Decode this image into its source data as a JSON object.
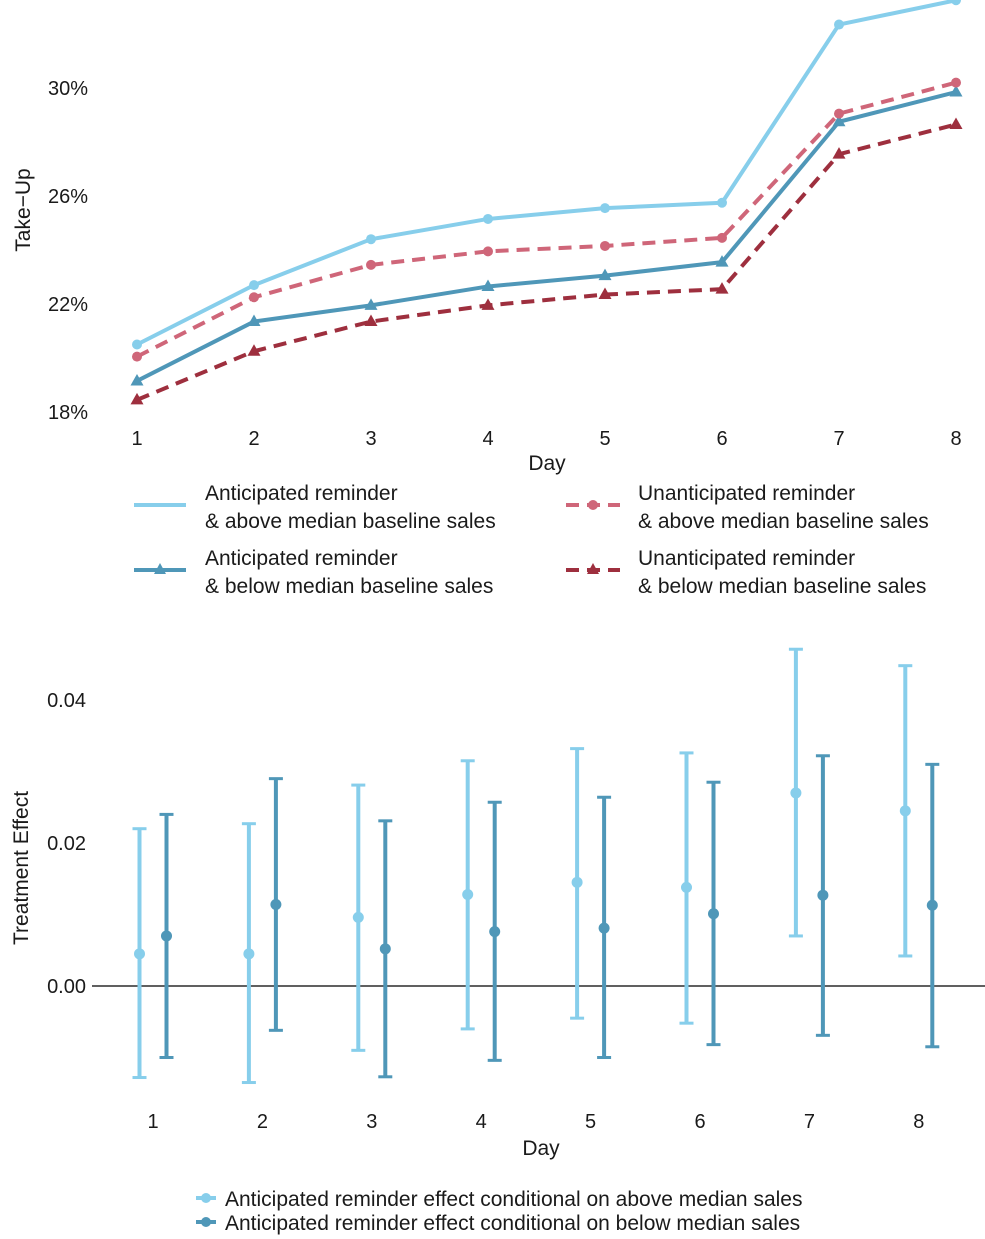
{
  "chart_data": [
    {
      "type": "line",
      "xlabel": "Day",
      "ylabel": "Take−Up",
      "x": [
        1,
        2,
        3,
        4,
        5,
        6,
        7,
        8
      ],
      "x_tick_labels": [
        "1",
        "2",
        "3",
        "4",
        "5",
        "6",
        "7",
        "8"
      ],
      "ylim": [
        0.18,
        0.33
      ],
      "y_ticks": [
        0.18,
        0.22,
        0.26,
        0.3
      ],
      "y_tick_labels": [
        "18%",
        "22%",
        "26%",
        "30%"
      ],
      "grid": false,
      "legend_position": "bottom",
      "series": [
        {
          "name_line1": "Anticipated reminder",
          "name_line2": "& above median baseline sales",
          "color": "#87ceeb",
          "dash": "solid",
          "marker": "circle",
          "values": [
            0.205,
            0.227,
            0.244,
            0.2515,
            0.2555,
            0.2575,
            0.3235,
            0.3325
          ]
        },
        {
          "name_line1": "Unanticipated reminder",
          "name_line2": "& above median baseline sales",
          "color": "#cf6679",
          "dash": "dashed",
          "marker": "circle",
          "values": [
            0.2005,
            0.2225,
            0.2345,
            0.2395,
            0.2415,
            0.2445,
            0.2905,
            0.302
          ]
        },
        {
          "name_line1": "Anticipated reminder",
          "name_line2": "& below median baseline sales",
          "color": "#4f97b8",
          "dash": "solid",
          "marker": "triangle",
          "values": [
            0.1915,
            0.2135,
            0.2195,
            0.2265,
            0.2305,
            0.2355,
            0.2875,
            0.2985
          ]
        },
        {
          "name_line1": "Unanticipated reminder",
          "name_line2": "& below median baseline sales",
          "color": "#9e2f3e",
          "dash": "dashed",
          "marker": "triangle",
          "values": [
            0.1845,
            0.2025,
            0.2135,
            0.2195,
            0.2235,
            0.2255,
            0.2755,
            0.2865
          ]
        }
      ]
    },
    {
      "type": "errorbar",
      "xlabel": "Day",
      "ylabel": "Treatment Effect",
      "x": [
        1,
        2,
        3,
        4,
        5,
        6,
        7,
        8
      ],
      "x_tick_labels": [
        "1",
        "2",
        "3",
        "4",
        "5",
        "6",
        "7",
        "8"
      ],
      "ylim": [
        -0.015,
        0.048
      ],
      "y_ticks": [
        0.0,
        0.02,
        0.04
      ],
      "y_tick_labels": [
        "0.00",
        "0.02",
        "0.04"
      ],
      "reference_line": 0.0,
      "grid": false,
      "legend_position": "bottom",
      "series": [
        {
          "name": "Anticipated reminder effect conditional on above median sales",
          "color": "#87ceeb",
          "values": [
            0.0045,
            0.0045,
            0.0096,
            0.0128,
            0.0145,
            0.0138,
            0.027,
            0.0245
          ],
          "lower": [
            -0.0128,
            -0.0135,
            -0.009,
            -0.006,
            -0.0045,
            -0.0052,
            0.007,
            0.0042
          ],
          "upper": [
            0.022,
            0.0227,
            0.0281,
            0.0315,
            0.0332,
            0.0326,
            0.0471,
            0.0448
          ]
        },
        {
          "name": "Anticipated reminder effect conditional on below median sales",
          "color": "#4f97b8",
          "values": [
            0.007,
            0.0114,
            0.0052,
            0.0076,
            0.0081,
            0.0101,
            0.0127,
            0.0113
          ],
          "lower": [
            -0.01,
            -0.0062,
            -0.0127,
            -0.0104,
            -0.01,
            -0.0082,
            -0.0069,
            -0.0085
          ],
          "upper": [
            0.024,
            0.029,
            0.0231,
            0.0257,
            0.0264,
            0.0285,
            0.0322,
            0.031
          ]
        }
      ]
    }
  ]
}
